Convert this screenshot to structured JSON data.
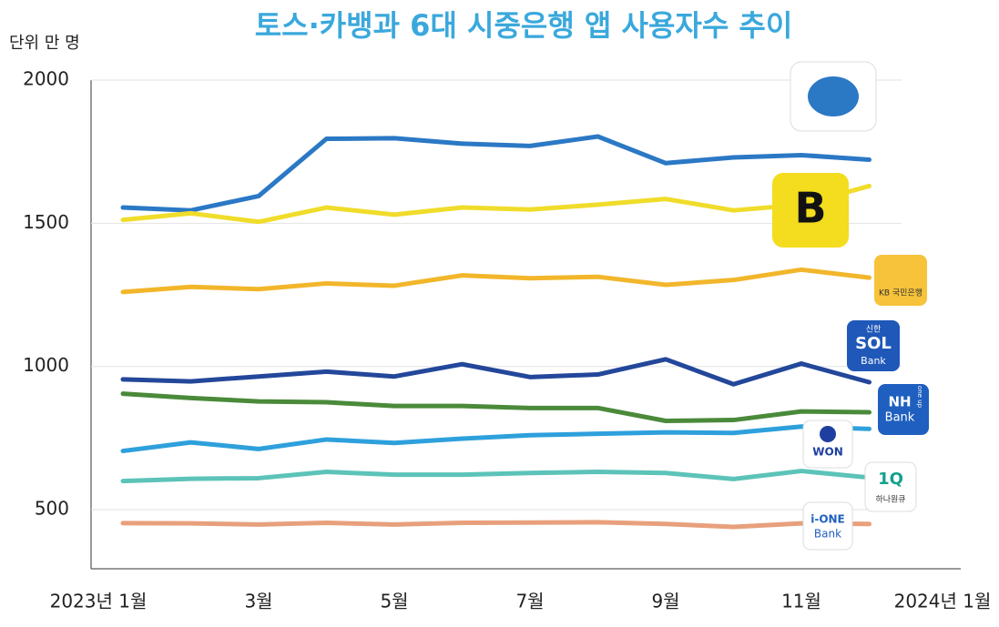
{
  "chart_data": {
    "type": "line",
    "title": "토스·카뱅과 6대 시중은행 앱 사용자수 추이",
    "unit_label": "단위 만 명",
    "categories": [
      "2023년 1월",
      null,
      "3월",
      null,
      "5월",
      null,
      "7월",
      null,
      "9월",
      null,
      "11월",
      null,
      "2024년 1월"
    ],
    "ylim": [
      300,
      2000
    ],
    "yticks": [
      500,
      1000,
      1500,
      2000
    ],
    "grid": true,
    "series": [
      {
        "color": "#2b78c5",
        "values": [
          1555,
          1545,
          1595,
          1795,
          1797,
          1778,
          1770,
          1803,
          1710,
          1730,
          1738,
          1722,
          null
        ]
      },
      {
        "color": "#f0dc2a",
        "values": [
          1512,
          1535,
          1505,
          1555,
          1530,
          1555,
          1548,
          1565,
          1585,
          1545,
          1565,
          1630,
          null
        ]
      },
      {
        "color": "#f2b62b",
        "values": [
          1260,
          1278,
          1270,
          1290,
          1282,
          1318,
          1308,
          1313,
          1285,
          1302,
          1338,
          1310,
          null
        ]
      },
      {
        "color": "#23479a",
        "values": [
          955,
          948,
          965,
          982,
          965,
          1008,
          963,
          972,
          1025,
          938,
          1010,
          945,
          null
        ]
      },
      {
        "color": "#4a8a3a",
        "values": [
          905,
          890,
          878,
          875,
          862,
          862,
          855,
          855,
          810,
          813,
          843,
          840,
          null
        ]
      },
      {
        "color": "#2ea0dc",
        "values": [
          705,
          735,
          712,
          745,
          733,
          748,
          760,
          765,
          770,
          768,
          790,
          782,
          null
        ]
      },
      {
        "color": "#5cc3b8",
        "values": [
          600,
          608,
          610,
          632,
          622,
          622,
          628,
          632,
          628,
          607,
          635,
          612,
          null
        ]
      },
      {
        "color": "#e8a07c",
        "values": [
          453,
          452,
          448,
          454,
          448,
          454,
          455,
          456,
          450,
          440,
          452,
          450,
          null
        ]
      }
    ],
    "icons": {
      "kakao": [
        "B"
      ],
      "kb": [
        "KB 국민은행"
      ],
      "shinhan": [
        "신한",
        "SOL",
        "Bank"
      ],
      "nh": [
        "NH",
        "Bank",
        "one up"
      ],
      "won": [
        "WON"
      ],
      "hana": [
        "1Q",
        "하나원큐"
      ],
      "ibk": [
        "i-ONE",
        "Bank"
      ]
    }
  }
}
